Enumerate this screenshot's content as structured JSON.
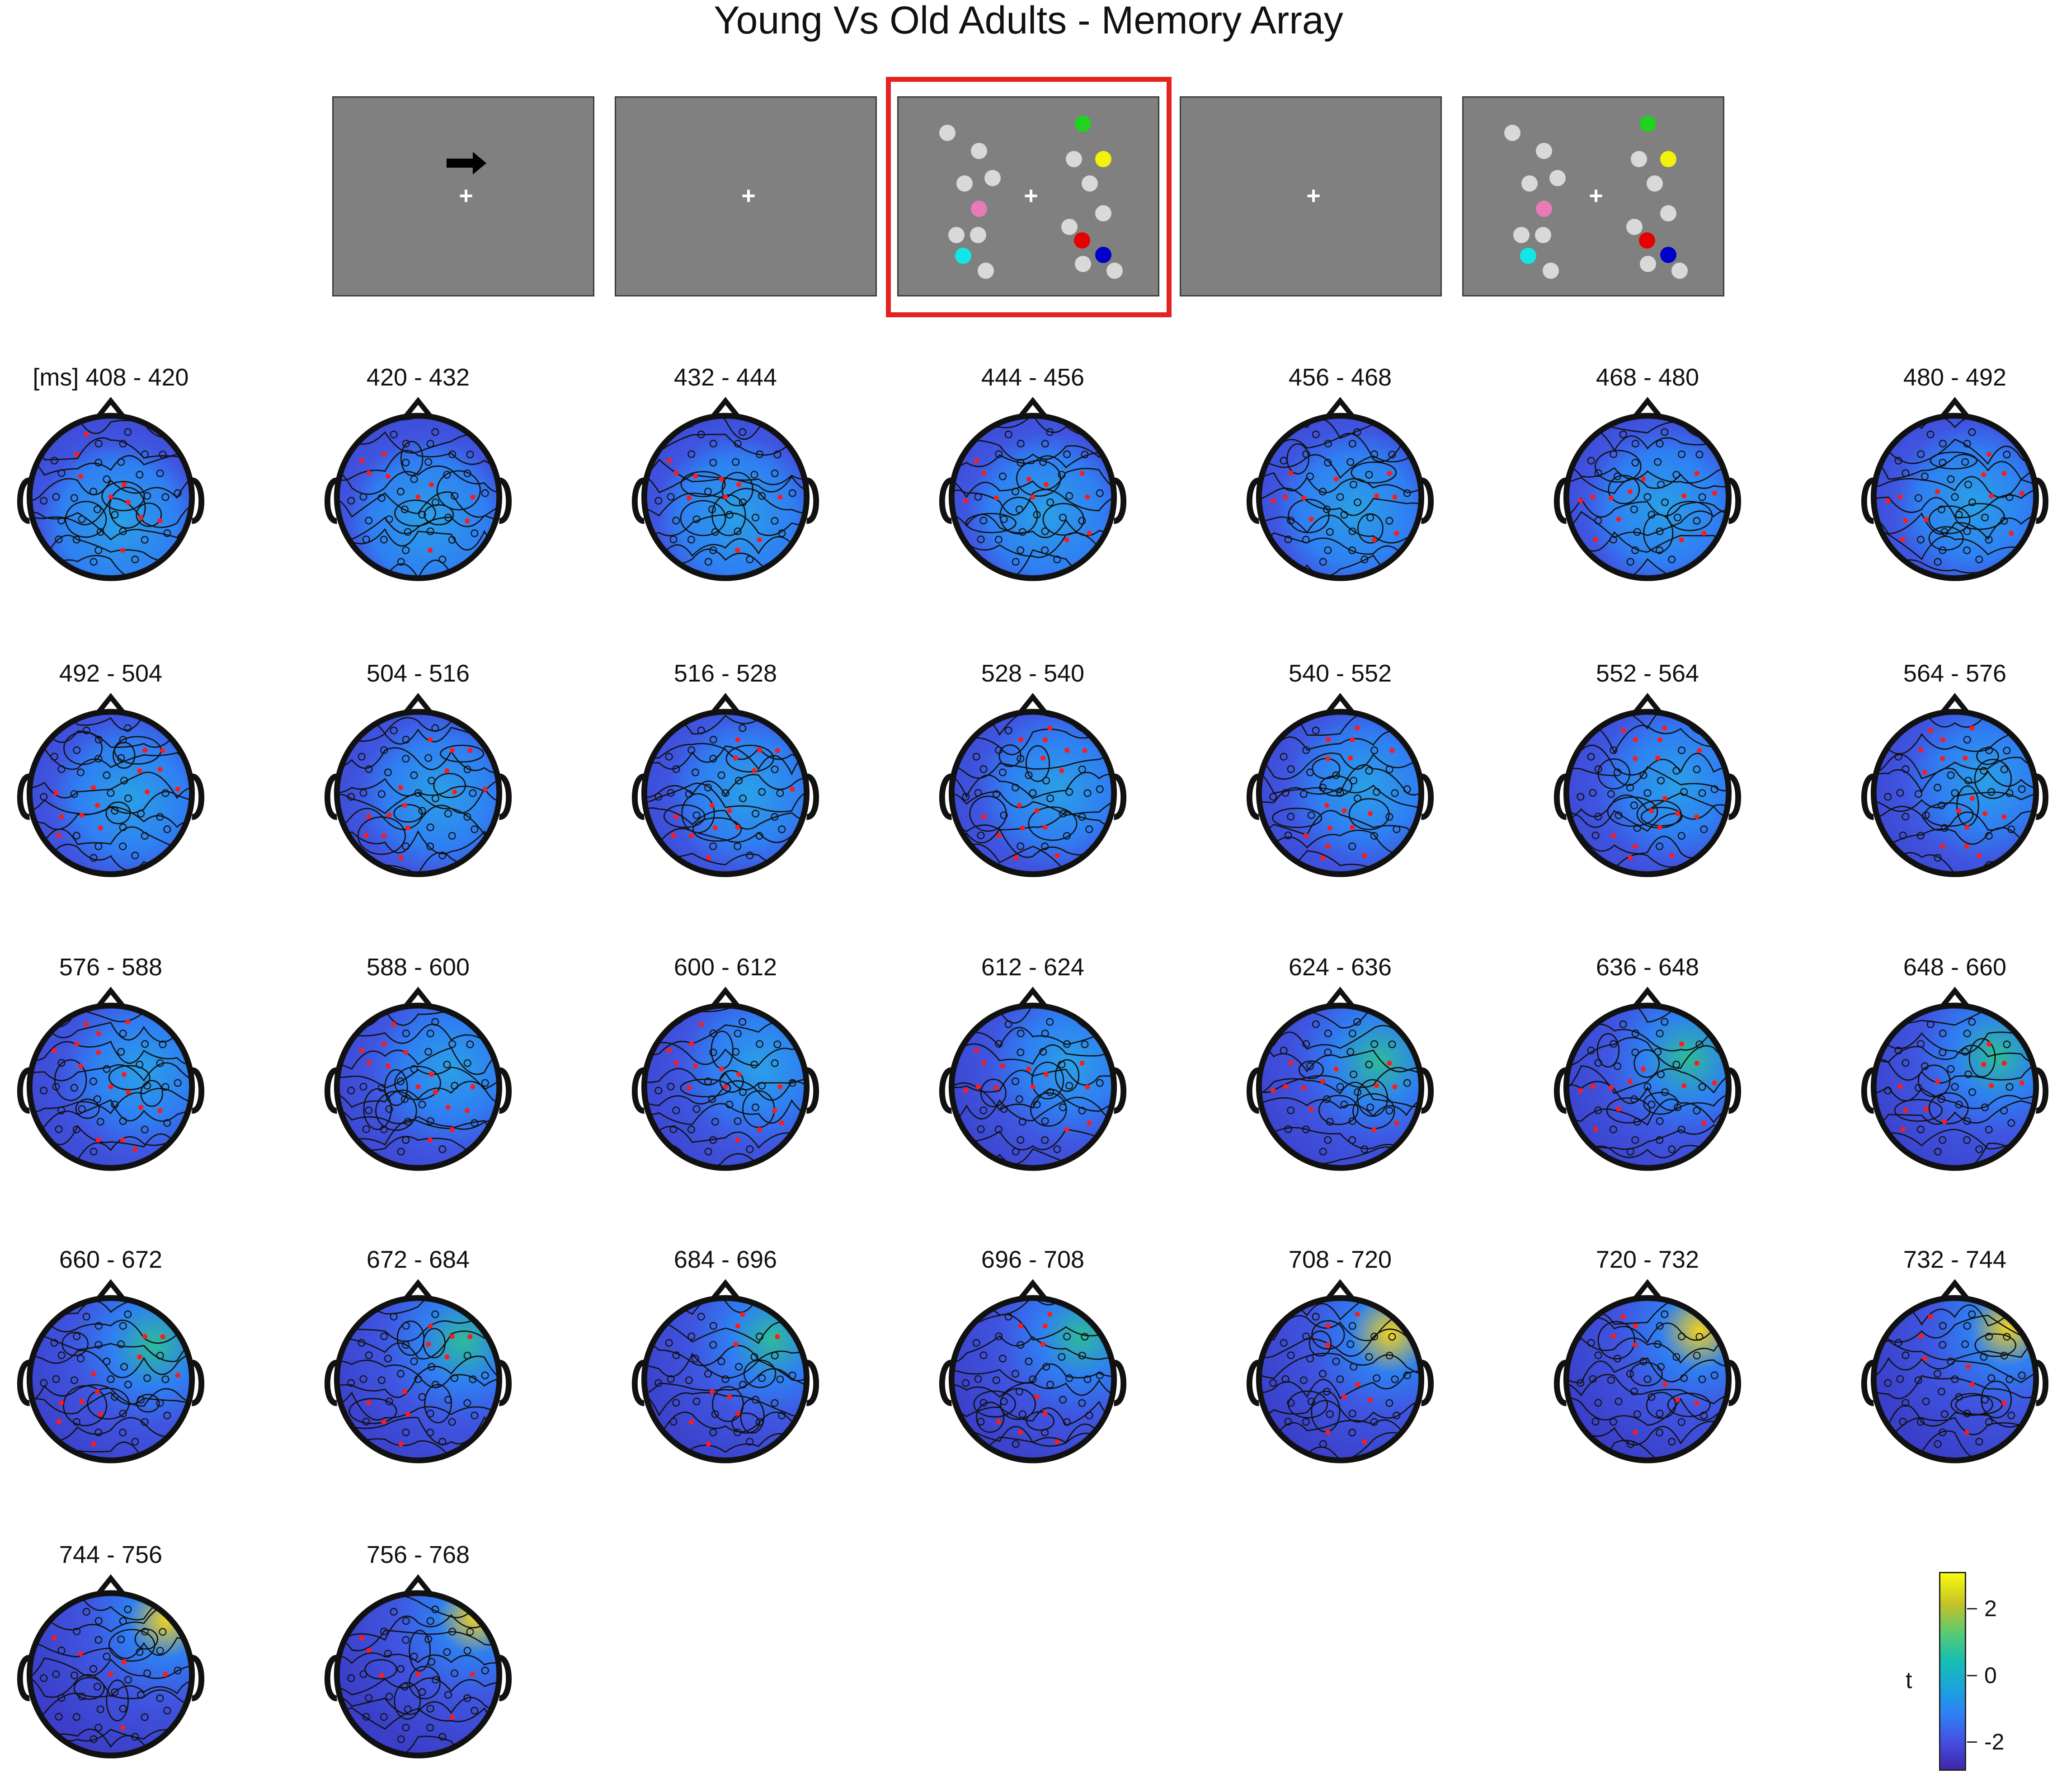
{
  "title": "Young Vs Old Adults - Memory Array",
  "paradigm": {
    "screens": [
      {
        "content": "cue",
        "arrow": "right-arrow"
      },
      {
        "content": "fixation"
      },
      {
        "content": "memory-array",
        "highlighted": true
      },
      {
        "content": "fixation"
      },
      {
        "content": "test-array"
      }
    ],
    "highlight_color": "#e52222",
    "screen_color": "#808080",
    "dot_colors": {
      "grey": "#d9d9d9",
      "green": "#1fd31f",
      "yellow": "#f2f20a",
      "pink": "#e87ab8",
      "red": "#e60000",
      "blue": "#0000c8",
      "cyan": "#12e6e6"
    }
  },
  "time_unit_label": "[ms]",
  "panels": [
    {
      "label": "408 - 420"
    },
    {
      "label": "420 - 432"
    },
    {
      "label": "432 - 444"
    },
    {
      "label": "444 - 456"
    },
    {
      "label": "456 - 468"
    },
    {
      "label": "468 - 480"
    },
    {
      "label": "480 - 492"
    },
    {
      "label": "492 - 504"
    },
    {
      "label": "504 - 516"
    },
    {
      "label": "516 - 528"
    },
    {
      "label": "528 - 540"
    },
    {
      "label": "540 - 552"
    },
    {
      "label": "552 - 564"
    },
    {
      "label": "564 - 576"
    },
    {
      "label": "576 - 588"
    },
    {
      "label": "588 - 600"
    },
    {
      "label": "600 - 612"
    },
    {
      "label": "612 - 624"
    },
    {
      "label": "624 - 636"
    },
    {
      "label": "636 - 648"
    },
    {
      "label": "648 - 660"
    },
    {
      "label": "660 - 672"
    },
    {
      "label": "672 - 684"
    },
    {
      "label": "684 - 696"
    },
    {
      "label": "696 - 708"
    },
    {
      "label": "708 - 720"
    },
    {
      "label": "720 - 732"
    },
    {
      "label": "732 - 744"
    },
    {
      "label": "744 - 756"
    },
    {
      "label": "756 - 768"
    }
  ],
  "colorbar": {
    "label": "t",
    "ticks": [
      "2",
      "0",
      "-2"
    ],
    "colormap": "parula"
  }
}
